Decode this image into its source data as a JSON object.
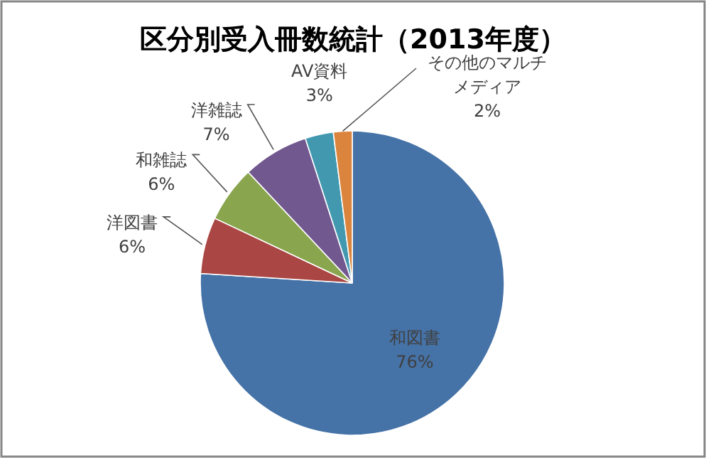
{
  "chart_data": {
    "type": "pie",
    "title": "区分別受入冊数統計（2013年度）",
    "categories": [
      "和図書",
      "洋図書",
      "和雑誌",
      "洋雑誌",
      "AV資料",
      "その他のマルチメディア"
    ],
    "values": [
      76,
      6,
      6,
      7,
      3,
      2
    ],
    "colors": [
      "#4572a7",
      "#aa4643",
      "#89a54e",
      "#71588f",
      "#4198af",
      "#db843d"
    ],
    "value_labels": [
      "76%",
      "6%",
      "6%",
      "7%",
      "3%",
      "2%"
    ],
    "legend": false
  }
}
